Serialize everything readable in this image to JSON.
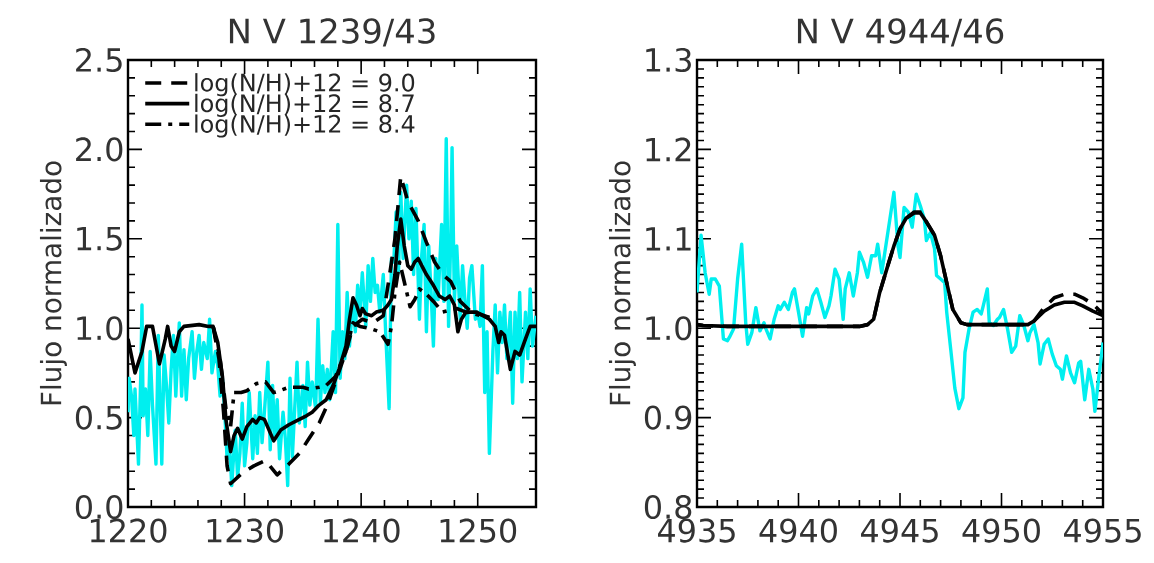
{
  "chart_data": [
    {
      "type": "line",
      "title": "N V 1239/43",
      "ylabel": "Flujo normalizado",
      "xlim": [
        1220,
        1255
      ],
      "xticks": [
        1220,
        1230,
        1240,
        1250
      ],
      "ylim": [
        0,
        2.5
      ],
      "yticks": [
        {
          "value": 0,
          "label": "0.0"
        },
        {
          "value": 0.5,
          "label": "0.5"
        },
        {
          "value": 1,
          "label": "1.0"
        },
        {
          "value": 1.5,
          "label": "1.5"
        },
        {
          "value": 2,
          "label": "2.0"
        },
        {
          "value": 2.5,
          "label": "2.5"
        }
      ],
      "legend": "top left",
      "series": [
        {
          "color": "#00efef",
          "line_style": "solid",
          "x": [
            1220.0,
            1220.1,
            1220.3,
            1220.5,
            1220.6,
            1220.9,
            1221.1,
            1221.2,
            1221.3,
            1221.5,
            1221.7,
            1221.9,
            1222.1,
            1222.4,
            1222.6,
            1222.7,
            1222.9,
            1223.1,
            1223.3,
            1223.5,
            1223.7,
            1223.9,
            1224.1,
            1224.4,
            1224.6,
            1224.8,
            1225.0,
            1225.2,
            1225.5,
            1225.7,
            1225.9,
            1226.1,
            1226.3,
            1226.5,
            1226.8,
            1227.0,
            1227.2,
            1227.5,
            1227.7,
            1227.9,
            1228.1,
            1228.3,
            1228.5,
            1228.7,
            1228.9,
            1229.2,
            1229.4,
            1229.6,
            1229.8,
            1230.0,
            1230.2,
            1230.4,
            1230.7,
            1230.9,
            1231.1,
            1231.3,
            1231.5,
            1231.7,
            1232.0,
            1232.2,
            1232.4,
            1232.6,
            1232.8,
            1233.0,
            1233.3,
            1233.5,
            1233.7,
            1233.9,
            1234.1,
            1234.3,
            1234.5,
            1234.7,
            1235.0,
            1235.2,
            1235.4,
            1235.6,
            1235.8,
            1236.1,
            1236.3,
            1236.5,
            1236.7,
            1236.9,
            1237.1,
            1237.3,
            1237.6,
            1237.8,
            1238.0,
            1238.2,
            1238.4,
            1238.6,
            1238.8,
            1239.0,
            1239.3,
            1239.5,
            1239.7,
            1239.9,
            1240.1,
            1240.4,
            1240.6,
            1240.8,
            1241.0,
            1241.2,
            1241.4,
            1241.6,
            1241.9,
            1242.1,
            1242.4,
            1242.6,
            1242.8,
            1243.0,
            1243.2,
            1243.4,
            1243.6,
            1243.9,
            1244.1,
            1244.3,
            1244.5,
            1244.7,
            1245.0,
            1245.2,
            1245.4,
            1245.6,
            1245.8,
            1246.0,
            1246.2,
            1246.4,
            1246.6,
            1246.9,
            1247.1,
            1247.3,
            1247.5,
            1247.7,
            1247.8,
            1248.0,
            1248.2,
            1248.5,
            1248.7,
            1248.9,
            1249.1,
            1249.3,
            1249.5,
            1249.8,
            1250.0,
            1250.2,
            1250.4,
            1250.6,
            1250.8,
            1251.0,
            1251.3,
            1251.5,
            1251.7,
            1251.9,
            1252.1,
            1252.3,
            1252.5,
            1252.8,
            1253.0,
            1253.2,
            1253.4,
            1253.6,
            1253.8,
            1254.1,
            1254.3,
            1254.5,
            1254.7,
            1255.0
          ],
          "values": [
            0.53,
            0.72,
            0.62,
            0.4,
            0.66,
            0.24,
            0.75,
            1.13,
            0.51,
            0.66,
            0.4,
            0.87,
            0.57,
            0.24,
            0.96,
            0.72,
            0.24,
            0.85,
            0.68,
            0.47,
            0.77,
            0.96,
            0.62,
            1.03,
            0.62,
            0.88,
            0.6,
            0.83,
            0.98,
            0.72,
            0.87,
            0.96,
            0.77,
            0.92,
            0.83,
            1.05,
            0.75,
            0.87,
            0.79,
            0.62,
            0.72,
            0.53,
            0.27,
            0.36,
            0.12,
            0.43,
            0.17,
            0.3,
            0.58,
            0.23,
            0.36,
            0.64,
            0.27,
            0.51,
            0.3,
            0.64,
            0.36,
            0.53,
            0.81,
            0.32,
            0.68,
            0.38,
            0.6,
            0.27,
            0.53,
            0.38,
            0.12,
            0.72,
            0.28,
            0.55,
            0.81,
            0.47,
            0.68,
            0.45,
            0.81,
            0.57,
            0.7,
            0.55,
            1.05,
            0.58,
            0.79,
            0.64,
            0.77,
            0.6,
            0.98,
            0.64,
            1.58,
            0.72,
            0.98,
            0.83,
            1.2,
            0.9,
            1.16,
            0.98,
            1.24,
            1.09,
            1.31,
            1.01,
            1.35,
            1.15,
            1.39,
            1.2,
            1.24,
            1.09,
            1.3,
            0.98,
            0.55,
            1.39,
            1.37,
            1.65,
            1.31,
            1.76,
            1.39,
            1.8,
            1.5,
            1.71,
            1.3,
            1.67,
            1.05,
            1.41,
            1.58,
            0.98,
            1.46,
            1.2,
            0.9,
            1.39,
            1.16,
            1.58,
            1.15,
            2.06,
            1.01,
            1.54,
            2.01,
            1.15,
            1.46,
            1.05,
            1.35,
            1.16,
            1.0,
            1.28,
            1.35,
            1.05,
            1.09,
            1.01,
            1.35,
            0.64,
            0.98,
            0.3,
            0.87,
            1.13,
            0.75,
            1.09,
            0.92,
            1.13,
            0.83,
            1.09,
            0.58,
            1.09,
            0.83,
            1.2,
            0.7,
            1.09,
            0.83,
            1.22,
            0.9,
            1.07
          ]
        },
        {
          "name": "log(N/H)+12 = 9.0",
          "color": "#000000",
          "line_style": "dashed",
          "x": [
            1227.3,
            1227.8,
            1228.2,
            1228.5,
            1228.8,
            1229.8,
            1230.8,
            1231.8,
            1232.8,
            1233.8,
            1234.7,
            1235.5,
            1236.4,
            1237.1,
            1237.8,
            1238.7,
            1239.3,
            1240.1,
            1241.0,
            1241.9,
            1242.4,
            1242.9,
            1243.4,
            1244.0,
            1244.9,
            1245.6,
            1246.3,
            1247.0,
            1247.7,
            1248.5,
            1249.3,
            1251.0
          ],
          "values": [
            1.01,
            0.83,
            0.53,
            0.23,
            0.13,
            0.19,
            0.23,
            0.26,
            0.18,
            0.24,
            0.3,
            0.38,
            0.47,
            0.57,
            0.7,
            0.87,
            1.01,
            1.05,
            1.03,
            1.07,
            1.28,
            1.5,
            1.85,
            1.71,
            1.6,
            1.48,
            1.37,
            1.3,
            1.26,
            1.15,
            1.1,
            1.06
          ]
        },
        {
          "name": "log(N/H)+12 = 8.7",
          "color": "#000000",
          "line_style": "solid",
          "x": [
            1220.0,
            1220.6,
            1221.2,
            1221.6,
            1222.1,
            1222.7,
            1223.2,
            1223.4,
            1223.7,
            1224.0,
            1224.4,
            1224.8,
            1226.1,
            1226.9,
            1227.3,
            1227.7,
            1228.1,
            1228.4,
            1228.8,
            1229.1,
            1229.4,
            1229.8,
            1230.2,
            1230.7,
            1231.0,
            1231.3,
            1231.7,
            1232.1,
            1232.5,
            1233.1,
            1233.8,
            1234.7,
            1235.3,
            1235.8,
            1236.4,
            1237.0,
            1237.6,
            1238.1,
            1238.7,
            1239.0,
            1239.3,
            1239.6,
            1239.9,
            1240.1,
            1240.4,
            1240.9,
            1241.3,
            1241.9,
            1242.3,
            1242.6,
            1242.9,
            1243.1,
            1243.4,
            1243.7,
            1244.0,
            1244.3,
            1244.6,
            1244.9,
            1245.2,
            1245.6,
            1246.2,
            1246.7,
            1247.2,
            1247.6,
            1248.0,
            1248.3,
            1248.6,
            1249.0,
            1249.9,
            1251.0,
            1251.5,
            1251.8,
            1252.0,
            1252.3,
            1252.8,
            1253.2,
            1253.6,
            1254.1,
            1254.5,
            1255.0
          ],
          "values": [
            0.94,
            0.75,
            0.87,
            1.01,
            1.01,
            0.8,
            0.94,
            1.01,
            0.9,
            0.87,
            0.98,
            1.01,
            1.02,
            1.01,
            1.01,
            0.92,
            0.73,
            0.49,
            0.31,
            0.4,
            0.44,
            0.38,
            0.45,
            0.49,
            0.47,
            0.5,
            0.49,
            0.43,
            0.37,
            0.43,
            0.46,
            0.49,
            0.51,
            0.53,
            0.57,
            0.6,
            0.68,
            0.77,
            0.9,
            1.05,
            1.17,
            1.13,
            1.07,
            1.11,
            1.08,
            1.07,
            1.09,
            1.1,
            1.13,
            1.16,
            1.3,
            1.46,
            1.61,
            1.46,
            1.35,
            1.33,
            1.37,
            1.39,
            1.35,
            1.3,
            1.24,
            1.18,
            1.16,
            1.18,
            1.13,
            0.98,
            1.05,
            1.09,
            1.09,
            1.05,
            1.01,
            0.92,
            0.98,
            0.96,
            0.77,
            0.87,
            0.85,
            0.94,
            1.01,
            1.01
          ]
        },
        {
          "name": "log(N/H)+12 = 8.4",
          "color": "#000000",
          "line_style": "dashdot",
          "x": [
            1227.3,
            1227.9,
            1228.4,
            1228.8,
            1229.1,
            1229.7,
            1230.2,
            1231.0,
            1231.8,
            1232.5,
            1233.0,
            1233.8,
            1235.0,
            1235.5,
            1236.4,
            1237.0,
            1237.8,
            1238.7,
            1239.3,
            1239.9,
            1240.7,
            1241.6,
            1242.3,
            1242.6,
            1242.9,
            1243.3,
            1243.7,
            1244.2,
            1244.6,
            1245.0,
            1245.6,
            1246.2,
            1247.0,
            1248.2,
            1249.0,
            1251.0
          ],
          "values": [
            1.01,
            0.83,
            0.55,
            0.45,
            0.64,
            0.64,
            0.65,
            0.69,
            0.7,
            0.64,
            0.65,
            0.67,
            0.67,
            0.66,
            0.67,
            0.68,
            0.73,
            0.87,
            1.03,
            1.01,
            1.0,
            0.98,
            0.91,
            1.01,
            1.2,
            1.37,
            1.26,
            1.12,
            1.16,
            1.22,
            1.19,
            1.15,
            1.09,
            1.11,
            1.09,
            1.06
          ]
        }
      ]
    },
    {
      "type": "line",
      "title": "N V 4944/46",
      "ylabel": "Flujo normalizado",
      "xlim": [
        4935,
        4955
      ],
      "xticks": [
        4935,
        4940,
        4945,
        4950,
        4955
      ],
      "ylim": [
        0.8,
        1.3
      ],
      "yticks": [
        {
          "value": 0.8,
          "label": "0.8"
        },
        {
          "value": 0.9,
          "label": "0.9"
        },
        {
          "value": 1.0,
          "label": "1.0"
        },
        {
          "value": 1.1,
          "label": "1.1"
        },
        {
          "value": 1.2,
          "label": "1.2"
        },
        {
          "value": 1.3,
          "label": "1.3"
        }
      ],
      "series": [
        {
          "color": "#00efef",
          "line_style": "solid",
          "x": [
            4935.0,
            4935.2,
            4935.4,
            4935.6,
            4935.7,
            4935.9,
            4936.1,
            4936.3,
            4936.5,
            4936.6,
            4936.8,
            4937.0,
            4937.2,
            4937.4,
            4937.5,
            4937.7,
            4937.9,
            4938.1,
            4938.3,
            4938.4,
            4938.6,
            4938.8,
            4939.0,
            4939.1,
            4939.3,
            4939.5,
            4939.7,
            4939.8,
            4940.0,
            4940.2,
            4940.4,
            4940.5,
            4940.7,
            4940.9,
            4941.1,
            4941.3,
            4941.5,
            4941.6,
            4941.8,
            4942.0,
            4942.2,
            4942.3,
            4942.5,
            4942.7,
            4942.9,
            4943.0,
            4943.2,
            4943.4,
            4943.6,
            4943.8,
            4943.9,
            4944.1,
            4944.3,
            4944.5,
            4944.7,
            4944.9,
            4945.0,
            4945.2,
            4945.4,
            4945.6,
            4945.8,
            4946.0,
            4946.2,
            4946.3,
            4946.5,
            4946.7,
            4946.8,
            4947.0,
            4947.2,
            4947.3,
            4947.5,
            4947.7,
            4947.9,
            4948.1,
            4948.2,
            4948.4,
            4948.6,
            4948.8,
            4949.0,
            4949.1,
            4949.3,
            4949.4,
            4949.6,
            4949.8,
            4949.9,
            4950.1,
            4950.3,
            4950.5,
            4950.7,
            4950.9,
            4951.1,
            4951.3,
            4951.4,
            4951.6,
            4951.8,
            4951.9,
            4952.1,
            4952.3,
            4952.5,
            4952.7,
            4952.9,
            4953.0,
            4953.2,
            4953.4,
            4953.6,
            4953.8,
            4953.9,
            4954.1,
            4954.3,
            4954.5,
            4954.6,
            4954.8,
            4955.0
          ],
          "values": [
            1.04,
            1.104,
            1.062,
            1.038,
            1.055,
            1.055,
            1.047,
            0.988,
            0.986,
            0.99,
            0.999,
            1.055,
            1.094,
            1.006,
            0.982,
            0.995,
            1.023,
            0.997,
            1.006,
            0.999,
            0.988,
            1.01,
            1.025,
            1.021,
            1.029,
            1.021,
            1.04,
            1.044,
            1.018,
            0.991,
            1.023,
            1.016,
            1.036,
            1.044,
            1.029,
            1.012,
            1.025,
            1.036,
            1.066,
            1.055,
            1.01,
            1.044,
            1.062,
            1.036,
            1.062,
            1.085,
            1.074,
            1.057,
            1.081,
            1.081,
            1.094,
            1.062,
            1.092,
            1.122,
            1.152,
            1.092,
            1.079,
            1.135,
            1.13,
            1.113,
            1.15,
            1.137,
            1.122,
            1.098,
            1.107,
            1.089,
            1.059,
            1.055,
            1.051,
            1.018,
            0.976,
            0.933,
            0.91,
            0.922,
            0.973,
            0.999,
            1.018,
            1.021,
            1.016,
            1.025,
            1.044,
            1.006,
            1.003,
            1.01,
            1.012,
            1.021,
            0.999,
            0.973,
            0.98,
            1.014,
            1.003,
            0.986,
            0.995,
            1.004,
            0.984,
            0.96,
            0.982,
            0.988,
            0.971,
            0.958,
            0.954,
            0.943,
            0.969,
            0.95,
            0.939,
            0.961,
            0.963,
            0.92,
            0.954,
            0.932,
            0.907,
            0.947,
            0.984
          ]
        },
        {
          "color": "#000000",
          "line_style": "dashed",
          "x": [
            4935.0,
            4935.3,
            4936.5,
            4939.8,
            4943.0,
            4943.4,
            4943.7,
            4944.0,
            4944.4,
            4944.7,
            4945.0,
            4945.3,
            4945.7,
            4946.0,
            4946.3,
            4946.7,
            4947.0,
            4947.3,
            4947.6,
            4948.0,
            4948.3,
            4949.6,
            4951.3,
            4951.6,
            4952.1,
            4952.6,
            4953.1,
            4953.6,
            4954.0,
            4954.5,
            4955.0
          ],
          "values": [
            1.004,
            1.003,
            1.002,
            1.002,
            1.002,
            1.004,
            1.01,
            1.04,
            1.07,
            1.092,
            1.111,
            1.123,
            1.13,
            1.13,
            1.119,
            1.104,
            1.081,
            1.051,
            1.021,
            1.006,
            1.004,
            1.004,
            1.004,
            1.008,
            1.023,
            1.034,
            1.038,
            1.038,
            1.034,
            1.027,
            1.016
          ]
        },
        {
          "color": "#000000",
          "line_style": "solid",
          "x": [
            4935.0,
            4935.3,
            4936.5,
            4939.8,
            4943.0,
            4943.4,
            4943.7,
            4944.0,
            4944.4,
            4944.7,
            4945.0,
            4945.3,
            4945.7,
            4946.0,
            4946.3,
            4946.7,
            4947.0,
            4947.3,
            4947.6,
            4948.0,
            4948.3,
            4949.6,
            4951.3,
            4951.6,
            4952.1,
            4952.6,
            4953.1,
            4953.6,
            4954.0,
            4954.5,
            4955.0
          ],
          "values": [
            1.004,
            1.003,
            1.002,
            1.002,
            1.002,
            1.004,
            1.01,
            1.04,
            1.07,
            1.092,
            1.111,
            1.123,
            1.129,
            1.129,
            1.119,
            1.104,
            1.081,
            1.051,
            1.021,
            1.006,
            1.004,
            1.004,
            1.004,
            1.008,
            1.019,
            1.026,
            1.029,
            1.029,
            1.025,
            1.019,
            1.014
          ]
        }
      ]
    }
  ]
}
